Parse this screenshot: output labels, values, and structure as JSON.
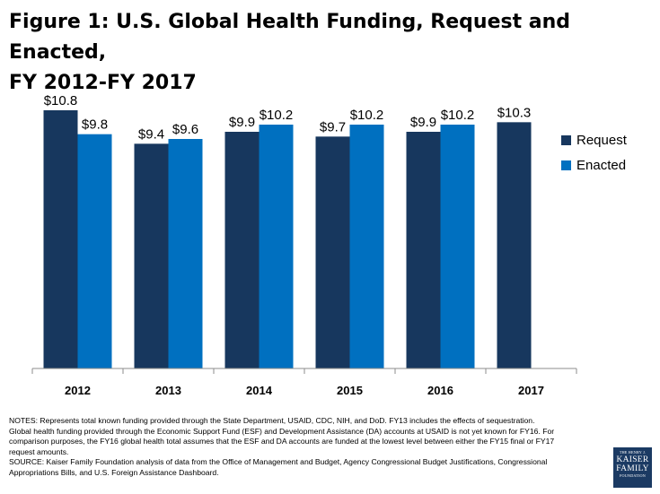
{
  "title_line1": "Figure 1: U.S. Global Health Funding, Request and Enacted,",
  "title_line2": "FY 2012-FY 2017",
  "chart_data": {
    "type": "bar",
    "title": "Figure 1: U.S. Global Health Funding, Request and Enacted, FY 2012-FY 2017",
    "categories": [
      "2012",
      "2013",
      "2014",
      "2015",
      "2016",
      "2017"
    ],
    "series": [
      {
        "name": "Request",
        "color": "#17375e",
        "values": [
          10.8,
          9.4,
          9.9,
          9.7,
          9.9,
          10.3
        ],
        "labels": [
          "$10.8",
          "$9.4",
          "$9.9",
          "$9.7",
          "$9.9",
          "$10.3"
        ]
      },
      {
        "name": "Enacted",
        "color": "#0070c0",
        "values": [
          9.8,
          9.6,
          10.2,
          10.2,
          10.2,
          null
        ],
        "labels": [
          "$9.8",
          "$9.6",
          "$10.2",
          "$10.2",
          "$10.2",
          null
        ]
      }
    ],
    "ylim": [
      0,
      10.8
    ],
    "xlabel": "",
    "ylabel": "",
    "grid": false,
    "legend_position": "right"
  },
  "notes": [
    "NOTES: Represents total known funding provided through the State Department, USAID, CDC, NIH, and DoD. FY13 includes the effects of sequestration.",
    "Global health funding provided through the Economic Support Fund (ESF) and Development Assistance (DA) accounts at USAID is not yet known for FY16. For",
    "comparison purposes, the FY16 global health total assumes that the ESF and DA accounts are funded at the lowest level between either the FY15 final or FY17",
    "request amounts.",
    "SOURCE: Kaiser Family Foundation analysis of data from the Office of Management and Budget, Agency Congressional Budget Justifications, Congressional",
    "Appropriations Bills, and U.S. Foreign Assistance Dashboard."
  ],
  "logo": {
    "line1": "THE HENRY J.",
    "line2a": "KAISER",
    "line2b": "FAMILY",
    "line3": "FOUNDATION"
  }
}
